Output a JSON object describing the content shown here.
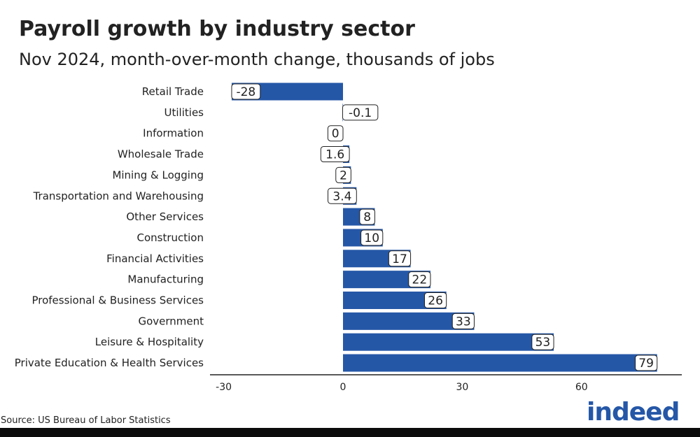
{
  "title": "Payroll growth by industry sector",
  "subtitle": "Nov 2024, month-over-month change, thousands of jobs",
  "source": "Source: US Bureau of Labor Statistics",
  "logo_text": "indeed",
  "colors": {
    "bar": "#2557A7",
    "text": "#222222",
    "axis": "#222222",
    "label_border": "#222222",
    "logo": "#2557A7",
    "bottom_band": "#0b0b0b"
  },
  "chart_data": {
    "type": "bar",
    "orientation": "horizontal",
    "title": "Payroll growth by industry sector",
    "subtitle": "Nov 2024, month-over-month change, thousands of jobs",
    "categories": [
      "Retail Trade",
      "Utilities",
      "Information",
      "Wholesale Trade",
      "Mining & Logging",
      "Transportation and Warehousing",
      "Other Services",
      "Construction",
      "Financial Activities",
      "Manufacturing",
      "Professional & Business Services",
      "Government",
      "Leisure & Hospitality",
      "Private Education & Health Services"
    ],
    "values": [
      -28,
      -0.1,
      0,
      1.6,
      2,
      3.4,
      8,
      10,
      17,
      22,
      26,
      33,
      53,
      79
    ],
    "value_labels": [
      "-28",
      "-0.1",
      "0",
      "1.6",
      "2",
      "3.4",
      "8",
      "10",
      "17",
      "22",
      "26",
      "33",
      "53",
      "79"
    ],
    "xlim": [
      -32,
      85
    ],
    "x_ticks": [
      -30,
      0,
      30,
      60
    ],
    "x_tick_labels": [
      "-30",
      "0",
      "30",
      "60"
    ],
    "xlabel": "",
    "ylabel": "",
    "grid": false,
    "legend": "none"
  }
}
